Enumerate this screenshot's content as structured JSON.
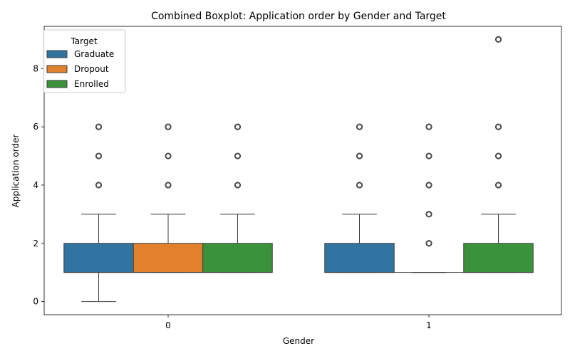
{
  "chart_data": {
    "type": "boxplot",
    "title": "Combined Boxplot: Application order by Gender and Target",
    "xlabel": "Gender",
    "ylabel": "Application order",
    "categories": [
      "0",
      "1"
    ],
    "ylim": [
      -0.45,
      9.45
    ],
    "yticks": [
      0,
      2,
      4,
      6,
      8
    ],
    "grid": false,
    "legend": {
      "title": "Target",
      "placement": "top-left"
    },
    "series": [
      {
        "name": "Graduate",
        "color": "#3274a1",
        "boxes": [
          {
            "category": "0",
            "whisker_low": 0,
            "q1": 1,
            "median": 1,
            "q3": 2,
            "whisker_high": 3,
            "outliers": [
              4,
              5,
              6
            ]
          },
          {
            "category": "1",
            "whisker_low": 1,
            "q1": 1,
            "median": 1,
            "q3": 2,
            "whisker_high": 3,
            "outliers": [
              4,
              5,
              6
            ]
          }
        ]
      },
      {
        "name": "Dropout",
        "color": "#e1812c",
        "boxes": [
          {
            "category": "0",
            "whisker_low": 1,
            "q1": 1,
            "median": 1,
            "q3": 2,
            "whisker_high": 3,
            "outliers": [
              4,
              5,
              6
            ]
          },
          {
            "category": "1",
            "whisker_low": 1,
            "q1": 1,
            "median": 1,
            "q3": 1,
            "whisker_high": 1,
            "outliers": [
              2,
              3,
              4,
              5,
              6
            ]
          }
        ]
      },
      {
        "name": "Enrolled",
        "color": "#3a923a",
        "boxes": [
          {
            "category": "0",
            "whisker_low": 1,
            "q1": 1,
            "median": 1,
            "q3": 2,
            "whisker_high": 3,
            "outliers": [
              4,
              5,
              6
            ]
          },
          {
            "category": "1",
            "whisker_low": 1,
            "q1": 1,
            "median": 1,
            "q3": 2,
            "whisker_high": 3,
            "outliers": [
              4,
              5,
              6,
              9
            ]
          }
        ]
      }
    ]
  }
}
